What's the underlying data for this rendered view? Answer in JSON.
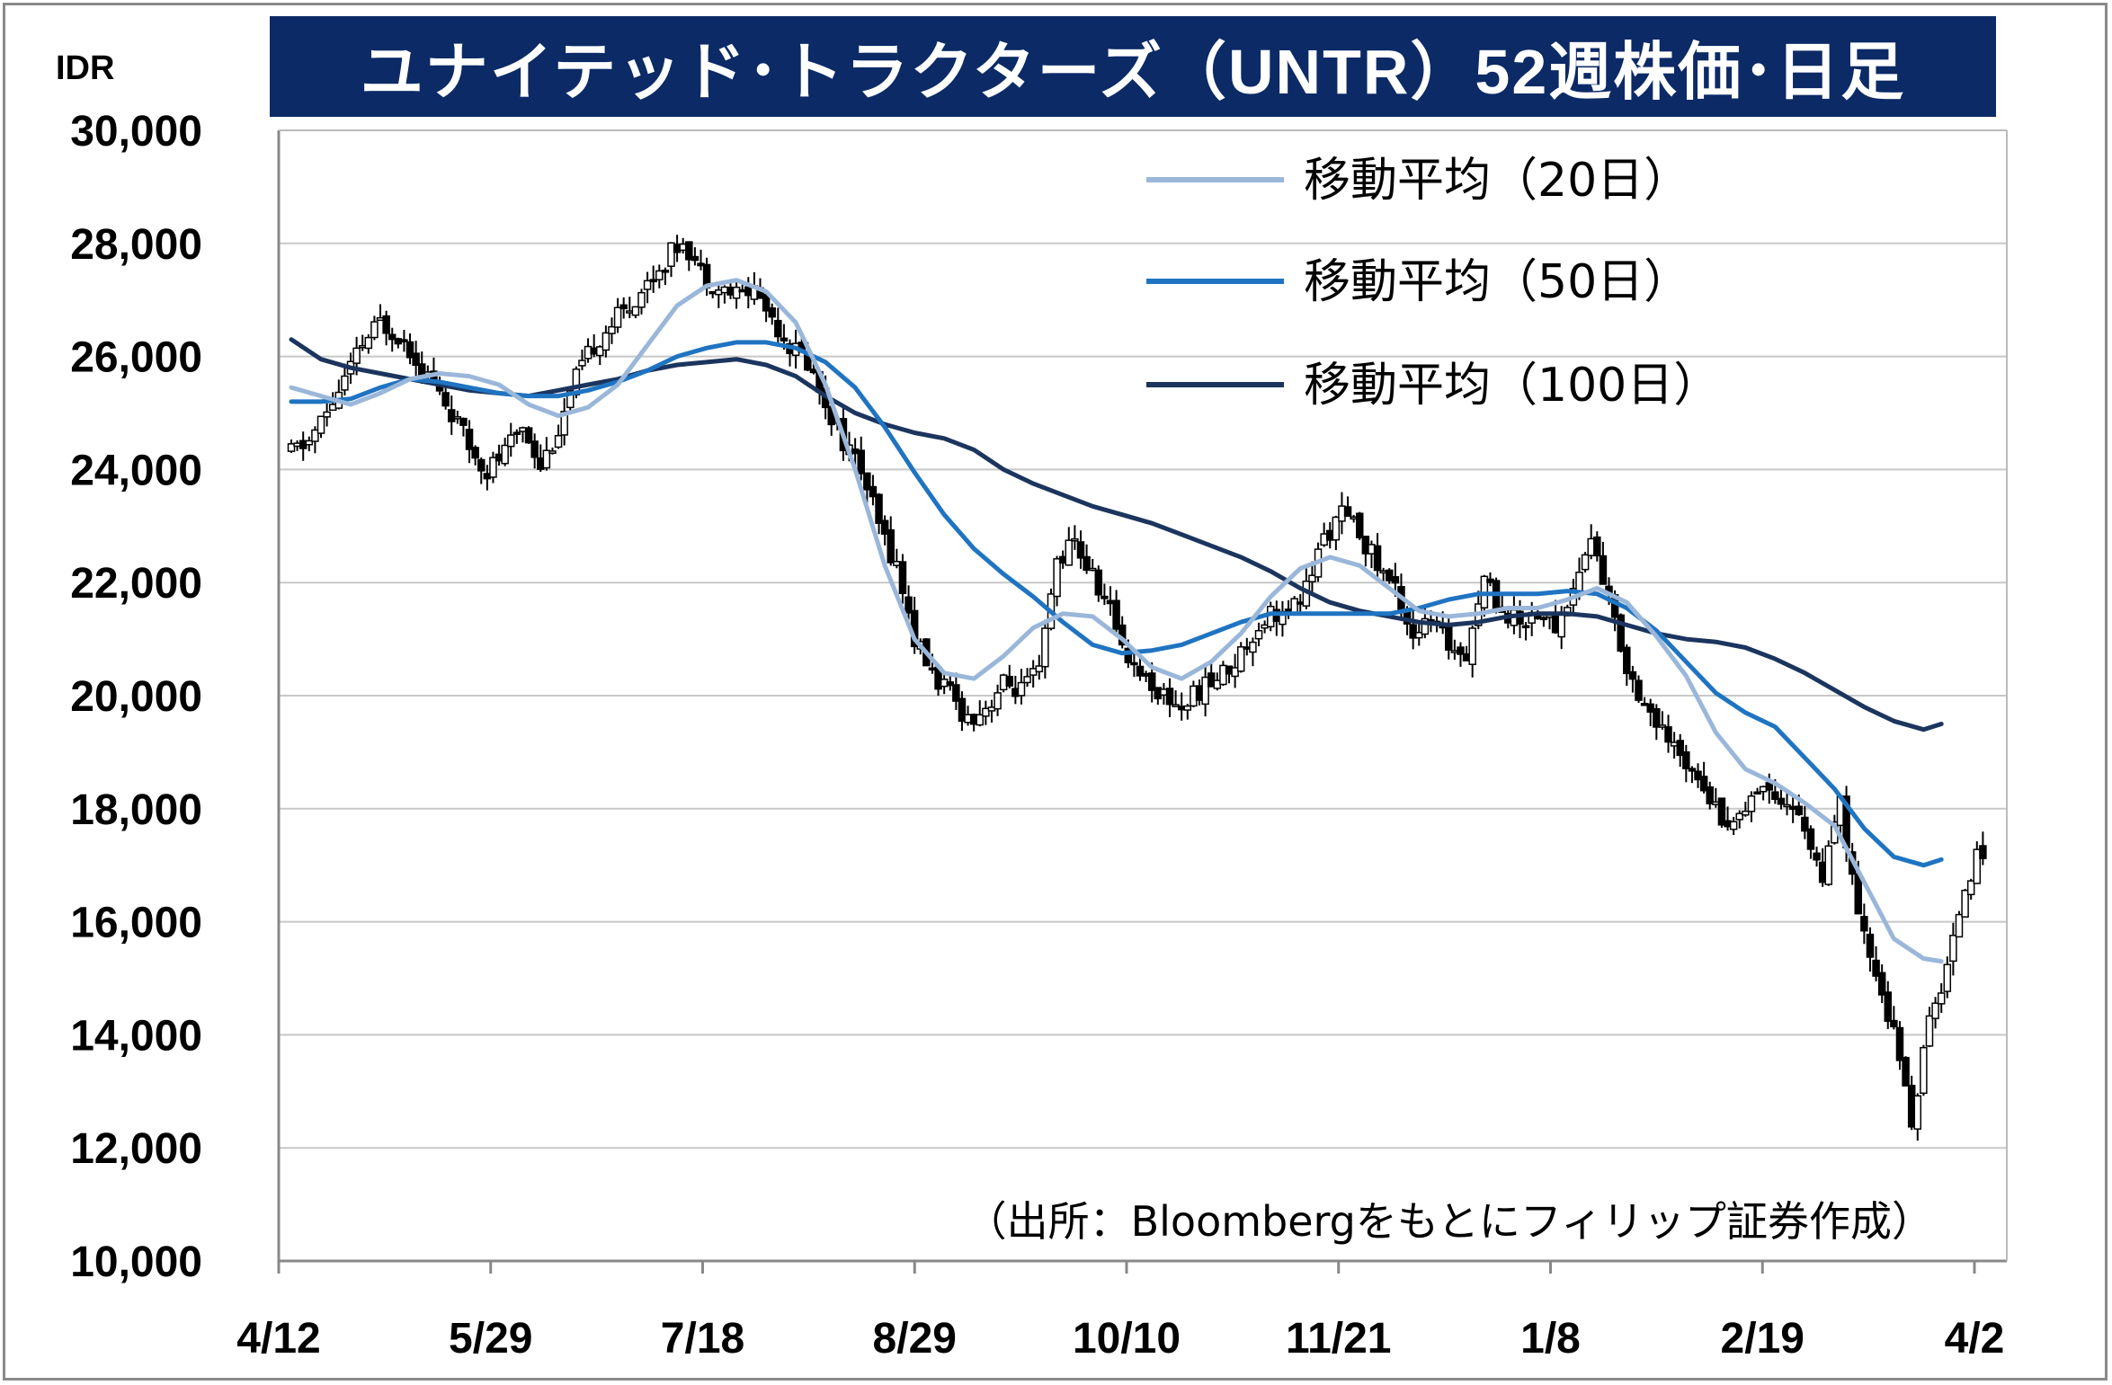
{
  "chart_data": {
    "type": "candlestick",
    "title": "ユナイテッド･トラクターズ（UNTR）52週株価･日足",
    "unit": "IDR",
    "source": "（出所：Bloombergをもとにフィリップ証券作成）",
    "ylim": [
      10000,
      30000
    ],
    "y_ticks": [
      "30,000",
      "28,000",
      "26,000",
      "24,000",
      "22,000",
      "20,000",
      "18,000",
      "16,000",
      "14,000",
      "12,000",
      "10,000"
    ],
    "x_ticks": [
      "4/12",
      "5/29",
      "7/18",
      "8/29",
      "10/10",
      "11/21",
      "1/8",
      "2/19",
      "4/2"
    ],
    "grid": true,
    "legend_position": "top-right",
    "colors": {
      "ma20": "#9ab7da",
      "ma50": "#1f74c2",
      "ma100": "#1b355e",
      "candle": "#000000",
      "grid": "#c8c8c8",
      "title_bg": "#0b2a66"
    },
    "series": [
      {
        "name": "移動平均（20日）",
        "points": [
          [
            0,
            25450
          ],
          [
            5,
            25300
          ],
          [
            10,
            25150
          ],
          [
            15,
            25350
          ],
          [
            20,
            25600
          ],
          [
            25,
            25700
          ],
          [
            30,
            25650
          ],
          [
            35,
            25500
          ],
          [
            40,
            25150
          ],
          [
            45,
            24950
          ],
          [
            50,
            25100
          ],
          [
            55,
            25500
          ],
          [
            60,
            26200
          ],
          [
            65,
            26900
          ],
          [
            70,
            27250
          ],
          [
            75,
            27350
          ],
          [
            80,
            27150
          ],
          [
            85,
            26600
          ],
          [
            90,
            25500
          ],
          [
            95,
            24000
          ],
          [
            100,
            22300
          ],
          [
            105,
            21000
          ],
          [
            110,
            20400
          ],
          [
            115,
            20300
          ],
          [
            120,
            20700
          ],
          [
            125,
            21200
          ],
          [
            130,
            21450
          ],
          [
            135,
            21400
          ],
          [
            140,
            21000
          ],
          [
            145,
            20500
          ],
          [
            150,
            20300
          ],
          [
            155,
            20600
          ],
          [
            160,
            21100
          ],
          [
            165,
            21750
          ],
          [
            170,
            22250
          ],
          [
            175,
            22450
          ],
          [
            180,
            22300
          ],
          [
            185,
            21900
          ],
          [
            190,
            21500
          ],
          [
            195,
            21400
          ],
          [
            200,
            21450
          ],
          [
            205,
            21550
          ],
          [
            210,
            21550
          ],
          [
            215,
            21700
          ],
          [
            220,
            21900
          ],
          [
            225,
            21650
          ],
          [
            230,
            21050
          ],
          [
            235,
            20350
          ],
          [
            240,
            19350
          ],
          [
            245,
            18700
          ],
          [
            250,
            18450
          ],
          [
            255,
            18100
          ],
          [
            260,
            17700
          ],
          [
            265,
            16700
          ],
          [
            270,
            15700
          ],
          [
            275,
            15350
          ],
          [
            278,
            15300
          ]
        ]
      },
      {
        "name": "移動平均（50日）",
        "points": [
          [
            0,
            25200
          ],
          [
            5,
            25200
          ],
          [
            10,
            25250
          ],
          [
            15,
            25450
          ],
          [
            20,
            25600
          ],
          [
            25,
            25550
          ],
          [
            30,
            25450
          ],
          [
            35,
            25350
          ],
          [
            40,
            25300
          ],
          [
            45,
            25300
          ],
          [
            50,
            25400
          ],
          [
            55,
            25550
          ],
          [
            60,
            25750
          ],
          [
            65,
            26000
          ],
          [
            70,
            26150
          ],
          [
            75,
            26250
          ],
          [
            80,
            26250
          ],
          [
            85,
            26150
          ],
          [
            90,
            25900
          ],
          [
            95,
            25450
          ],
          [
            100,
            24750
          ],
          [
            105,
            23950
          ],
          [
            110,
            23200
          ],
          [
            115,
            22600
          ],
          [
            120,
            22150
          ],
          [
            125,
            21750
          ],
          [
            130,
            21300
          ],
          [
            135,
            20900
          ],
          [
            140,
            20750
          ],
          [
            145,
            20800
          ],
          [
            150,
            20900
          ],
          [
            155,
            21100
          ],
          [
            160,
            21300
          ],
          [
            165,
            21450
          ],
          [
            170,
            21450
          ],
          [
            175,
            21450
          ],
          [
            180,
            21450
          ],
          [
            185,
            21450
          ],
          [
            190,
            21550
          ],
          [
            195,
            21700
          ],
          [
            200,
            21800
          ],
          [
            205,
            21800
          ],
          [
            210,
            21800
          ],
          [
            215,
            21850
          ],
          [
            220,
            21800
          ],
          [
            225,
            21550
          ],
          [
            230,
            21150
          ],
          [
            235,
            20600
          ],
          [
            240,
            20050
          ],
          [
            245,
            19700
          ],
          [
            250,
            19450
          ],
          [
            255,
            18900
          ],
          [
            260,
            18350
          ],
          [
            265,
            17650
          ],
          [
            270,
            17150
          ],
          [
            275,
            17000
          ],
          [
            278,
            17100
          ]
        ]
      },
      {
        "name": "移動平均（100日）",
        "points": [
          [
            0,
            26300
          ],
          [
            5,
            25950
          ],
          [
            10,
            25800
          ],
          [
            15,
            25700
          ],
          [
            20,
            25600
          ],
          [
            25,
            25500
          ],
          [
            30,
            25400
          ],
          [
            35,
            25350
          ],
          [
            40,
            25300
          ],
          [
            45,
            25400
          ],
          [
            50,
            25500
          ],
          [
            55,
            25600
          ],
          [
            60,
            25750
          ],
          [
            65,
            25850
          ],
          [
            70,
            25900
          ],
          [
            75,
            25950
          ],
          [
            80,
            25850
          ],
          [
            85,
            25650
          ],
          [
            90,
            25300
          ],
          [
            95,
            25000
          ],
          [
            100,
            24800
          ],
          [
            105,
            24650
          ],
          [
            110,
            24550
          ],
          [
            115,
            24350
          ],
          [
            120,
            24000
          ],
          [
            125,
            23750
          ],
          [
            130,
            23550
          ],
          [
            135,
            23350
          ],
          [
            140,
            23200
          ],
          [
            145,
            23050
          ],
          [
            150,
            22850
          ],
          [
            155,
            22650
          ],
          [
            160,
            22450
          ],
          [
            165,
            22200
          ],
          [
            170,
            21900
          ],
          [
            175,
            21650
          ],
          [
            180,
            21500
          ],
          [
            185,
            21400
          ],
          [
            190,
            21300
          ],
          [
            195,
            21250
          ],
          [
            200,
            21300
          ],
          [
            205,
            21400
          ],
          [
            210,
            21450
          ],
          [
            215,
            21450
          ],
          [
            220,
            21400
          ],
          [
            225,
            21250
          ],
          [
            230,
            21100
          ],
          [
            235,
            21000
          ],
          [
            240,
            20950
          ],
          [
            245,
            20850
          ],
          [
            250,
            20650
          ],
          [
            255,
            20400
          ],
          [
            260,
            20100
          ],
          [
            265,
            19800
          ],
          [
            270,
            19550
          ],
          [
            275,
            19400
          ],
          [
            278,
            19500
          ]
        ]
      }
    ],
    "price_anchors": [
      [
        0,
        24300
      ],
      [
        3,
        24500
      ],
      [
        6,
        25000
      ],
      [
        9,
        25600
      ],
      [
        12,
        26200
      ],
      [
        15,
        26600
      ],
      [
        18,
        26400
      ],
      [
        21,
        26000
      ],
      [
        24,
        25500
      ],
      [
        27,
        25000
      ],
      [
        30,
        24400
      ],
      [
        33,
        24000
      ],
      [
        36,
        24300
      ],
      [
        39,
        24800
      ],
      [
        42,
        24100
      ],
      [
        45,
        24700
      ],
      [
        48,
        25600
      ],
      [
        51,
        26200
      ],
      [
        54,
        26600
      ],
      [
        57,
        26900
      ],
      [
        60,
        27300
      ],
      [
        63,
        27700
      ],
      [
        66,
        28100
      ],
      [
        69,
        27500
      ],
      [
        72,
        27200
      ],
      [
        75,
        27100
      ],
      [
        78,
        27200
      ],
      [
        81,
        26700
      ],
      [
        84,
        26200
      ],
      [
        87,
        25900
      ],
      [
        90,
        25200
      ],
      [
        93,
        24500
      ],
      [
        96,
        24000
      ],
      [
        99,
        23000
      ],
      [
        102,
        22300
      ],
      [
        105,
        21000
      ],
      [
        108,
        20400
      ],
      [
        111,
        20000
      ],
      [
        114,
        19600
      ],
      [
        117,
        19800
      ],
      [
        120,
        20200
      ],
      [
        123,
        20100
      ],
      [
        126,
        20400
      ],
      [
        129,
        22400
      ],
      [
        132,
        22700
      ],
      [
        135,
        22100
      ],
      [
        138,
        21500
      ],
      [
        141,
        20700
      ],
      [
        144,
        20300
      ],
      [
        147,
        20000
      ],
      [
        150,
        19800
      ],
      [
        153,
        20100
      ],
      [
        156,
        20300
      ],
      [
        159,
        20600
      ],
      [
        162,
        21100
      ],
      [
        165,
        21500
      ],
      [
        168,
        21400
      ],
      [
        171,
        21900
      ],
      [
        174,
        22800
      ],
      [
        177,
        23200
      ],
      [
        180,
        22900
      ],
      [
        183,
        22300
      ],
      [
        186,
        21900
      ],
      [
        189,
        21100
      ],
      [
        192,
        21300
      ],
      [
        195,
        20900
      ],
      [
        198,
        20800
      ],
      [
        201,
        22100
      ],
      [
        204,
        21500
      ],
      [
        207,
        21300
      ],
      [
        210,
        21500
      ],
      [
        213,
        21200
      ],
      [
        216,
        21900
      ],
      [
        219,
        22800
      ],
      [
        222,
        21700
      ],
      [
        225,
        20500
      ],
      [
        228,
        19900
      ],
      [
        231,
        19300
      ],
      [
        234,
        18900
      ],
      [
        237,
        18700
      ],
      [
        240,
        18000
      ],
      [
        243,
        17700
      ],
      [
        246,
        18300
      ],
      [
        249,
        18400
      ],
      [
        252,
        18100
      ],
      [
        255,
        17700
      ],
      [
        258,
        16700
      ],
      [
        261,
        18100
      ],
      [
        264,
        16000
      ],
      [
        267,
        15100
      ],
      [
        270,
        14000
      ],
      [
        273,
        12500
      ],
      [
        276,
        14200
      ],
      [
        279,
        15200
      ],
      [
        282,
        16700
      ],
      [
        285,
        17300
      ]
    ]
  }
}
